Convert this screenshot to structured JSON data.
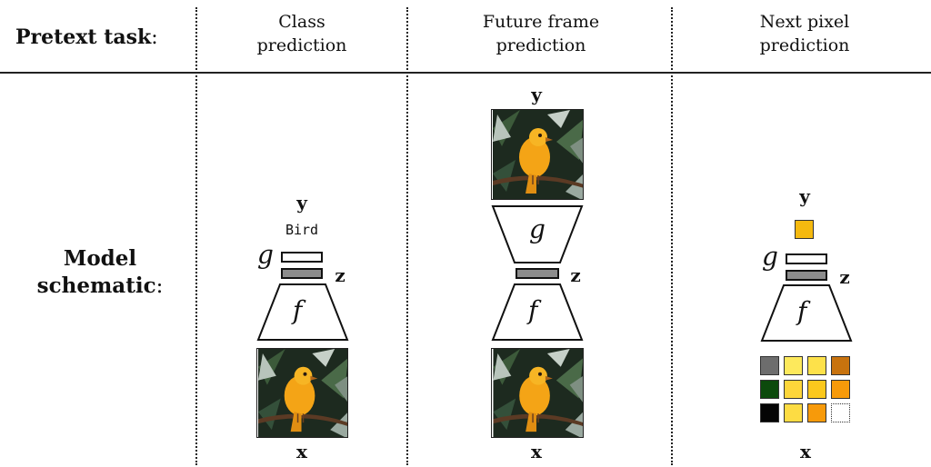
{
  "header": {
    "label": "Pretext task",
    "colon": ":",
    "columns": [
      {
        "title": "Class\nprediction"
      },
      {
        "title": "Future frame\nprediction"
      },
      {
        "title": "Next pixel\nprediction"
      }
    ]
  },
  "row": {
    "label_line1": "Model",
    "label_line2": "schematic",
    "colon": ":"
  },
  "symbols": {
    "y": "y",
    "x": "x",
    "z": "z",
    "f": "f",
    "g": "g"
  },
  "class_prediction": {
    "output_label": "Bird"
  },
  "next_pixel": {
    "output_color": "#f5b90f",
    "grid_colors": [
      [
        "#6d6d6d",
        "#fde95c",
        "#fde14a",
        "#c8730e"
      ],
      [
        "#0c4a0c",
        "#fdd63a",
        "#fbc81d",
        "#f79a0a"
      ],
      [
        "#050505",
        "#fddc43",
        "#f79a0a",
        "empty"
      ]
    ]
  },
  "colors": {
    "z_bar": "#8c8c8c",
    "bird": "#f4a416",
    "background_foliage": "#1d2a1f"
  }
}
